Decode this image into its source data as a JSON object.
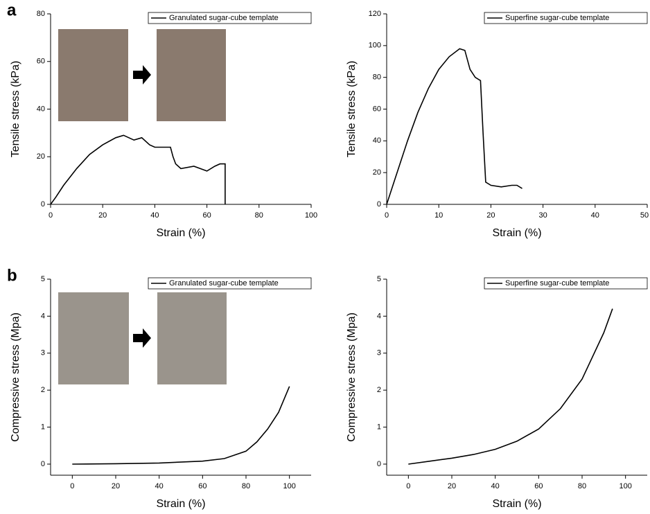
{
  "chart_data": [
    {
      "type": "line",
      "panel_label": "a",
      "x_label": "Strain (%)",
      "y_label": "Tensile stress (kPa)",
      "xlim": [
        0,
        100
      ],
      "xticks": [
        0,
        20,
        40,
        60,
        80,
        100
      ],
      "ylim": [
        0,
        80
      ],
      "yticks": [
        0,
        20,
        40,
        60,
        80
      ],
      "legend": "upper right",
      "x": [
        0,
        2,
        5,
        10,
        15,
        20,
        25,
        28,
        32,
        35,
        38,
        40,
        43,
        46,
        47,
        48,
        50,
        55,
        60,
        63,
        65,
        67,
        67
      ],
      "series": [
        {
          "name": "Granulated sugar-cube template",
          "color": "#000000",
          "values": [
            0,
            3,
            8,
            15,
            21,
            25,
            28,
            29,
            27,
            28,
            25,
            24,
            24,
            24,
            20,
            17,
            15,
            16,
            14,
            16,
            17,
            17,
            0
          ]
        }
      ]
    },
    {
      "type": "line",
      "x_label": "Strain (%)",
      "y_label": "Tensile stress (kPa)",
      "xlim": [
        0,
        50
      ],
      "xticks": [
        0,
        10,
        20,
        30,
        40,
        50
      ],
      "ylim": [
        0,
        120
      ],
      "yticks": [
        0,
        20,
        40,
        60,
        80,
        100,
        120
      ],
      "legend": "upper right",
      "x": [
        0,
        2,
        4,
        6,
        8,
        10,
        12,
        14,
        15,
        16,
        17,
        18,
        18.5,
        19,
        20,
        22,
        24,
        25,
        26
      ],
      "series": [
        {
          "name": "Superfine sugar-cube template",
          "color": "#000000",
          "values": [
            0,
            20,
            40,
            58,
            73,
            85,
            93,
            98,
            97,
            85,
            80,
            78,
            45,
            14,
            12,
            11,
            12,
            12,
            10
          ]
        }
      ]
    },
    {
      "type": "line",
      "panel_label": "b",
      "x_label": "Strain (%)",
      "y_label": "Compressive stress (Mpa)",
      "xlim": [
        -10,
        110
      ],
      "xticks": [
        0,
        20,
        40,
        60,
        80,
        100
      ],
      "ylim": [
        -0.3,
        5
      ],
      "yticks": [
        0,
        1,
        2,
        3,
        4,
        5
      ],
      "legend": "upper right",
      "x": [
        0,
        20,
        40,
        60,
        70,
        80,
        85,
        90,
        95,
        100
      ],
      "series": [
        {
          "name": "Granulated sugar-cube template",
          "color": "#000000",
          "values": [
            0,
            0.01,
            0.03,
            0.08,
            0.15,
            0.35,
            0.6,
            0.95,
            1.4,
            2.1
          ]
        }
      ]
    },
    {
      "type": "line",
      "x_label": "Strain (%)",
      "y_label": "Compressive stress (Mpa)",
      "xlim": [
        -10,
        110
      ],
      "xticks": [
        0,
        20,
        40,
        60,
        80,
        100
      ],
      "ylim": [
        -0.3,
        5
      ],
      "yticks": [
        0,
        1,
        2,
        3,
        4,
        5
      ],
      "legend": "upper right",
      "x": [
        0,
        10,
        20,
        30,
        40,
        50,
        60,
        70,
        80,
        90,
        94
      ],
      "series": [
        {
          "name": "Superfine sugar-cube template",
          "color": "#000000",
          "values": [
            0,
            0.08,
            0.16,
            0.26,
            0.4,
            0.62,
            0.95,
            1.5,
            2.3,
            3.55,
            4.2
          ]
        }
      ]
    }
  ]
}
